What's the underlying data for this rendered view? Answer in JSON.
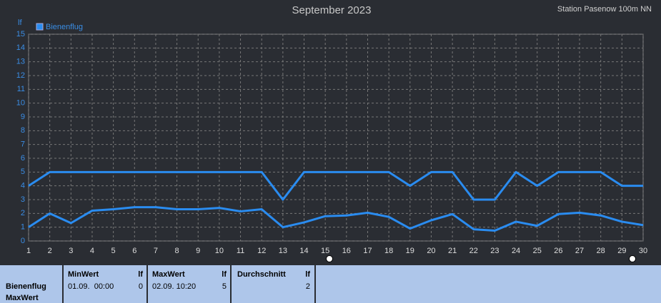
{
  "chart_data": {
    "type": "line",
    "title": "September 2023",
    "subtitle": "Station Pasenow 100m NN",
    "y_label": "lf",
    "x": [
      1,
      2,
      3,
      4,
      5,
      6,
      7,
      8,
      9,
      10,
      11,
      12,
      13,
      14,
      15,
      16,
      17,
      18,
      19,
      20,
      21,
      22,
      23,
      24,
      25,
      26,
      27,
      28,
      29,
      30
    ],
    "series": [
      {
        "name": "Bienenflug",
        "color": "#2a8cf0",
        "values": [
          4,
          5,
          5,
          5,
          5,
          5,
          5,
          5,
          5,
          5,
          5,
          5,
          3,
          5,
          5,
          5,
          5,
          5,
          4,
          5,
          5,
          3,
          3,
          5,
          4,
          5,
          5,
          5,
          4,
          4
        ]
      },
      {
        "color": "#2a8cf0",
        "values": [
          1.0,
          2.0,
          1.3,
          2.2,
          2.3,
          2.45,
          2.45,
          2.3,
          2.3,
          2.4,
          2.15,
          2.3,
          1.0,
          1.35,
          1.8,
          1.85,
          2.05,
          1.75,
          0.9,
          1.5,
          1.95,
          0.85,
          0.75,
          1.4,
          1.1,
          1.95,
          2.05,
          1.85,
          1.4,
          1.15
        ]
      }
    ],
    "xlim": [
      1,
      30
    ],
    "xticks": [
      1,
      2,
      3,
      4,
      5,
      6,
      7,
      8,
      9,
      10,
      11,
      12,
      13,
      14,
      15,
      16,
      17,
      18,
      19,
      20,
      21,
      22,
      23,
      24,
      25,
      26,
      27,
      28,
      29,
      30
    ],
    "ylim": [
      0,
      15
    ],
    "yticks": [
      0,
      1,
      2,
      3,
      4,
      5,
      6,
      7,
      8,
      9,
      10,
      11,
      12,
      13,
      14,
      15
    ],
    "grid": true,
    "legend": "top-left"
  },
  "table": {
    "row_labels": [
      "Bienenflug",
      "MaxWert"
    ],
    "columns": [
      {
        "header": "MinWert",
        "unit": "lf",
        "time": "01.09.  00:00",
        "value": 0
      },
      {
        "header": "MaxWert",
        "unit": "lf",
        "time": "02.09. 10:20",
        "value": 5
      },
      {
        "header": "Durchschnitt",
        "unit": "lf",
        "value": 2
      }
    ]
  }
}
